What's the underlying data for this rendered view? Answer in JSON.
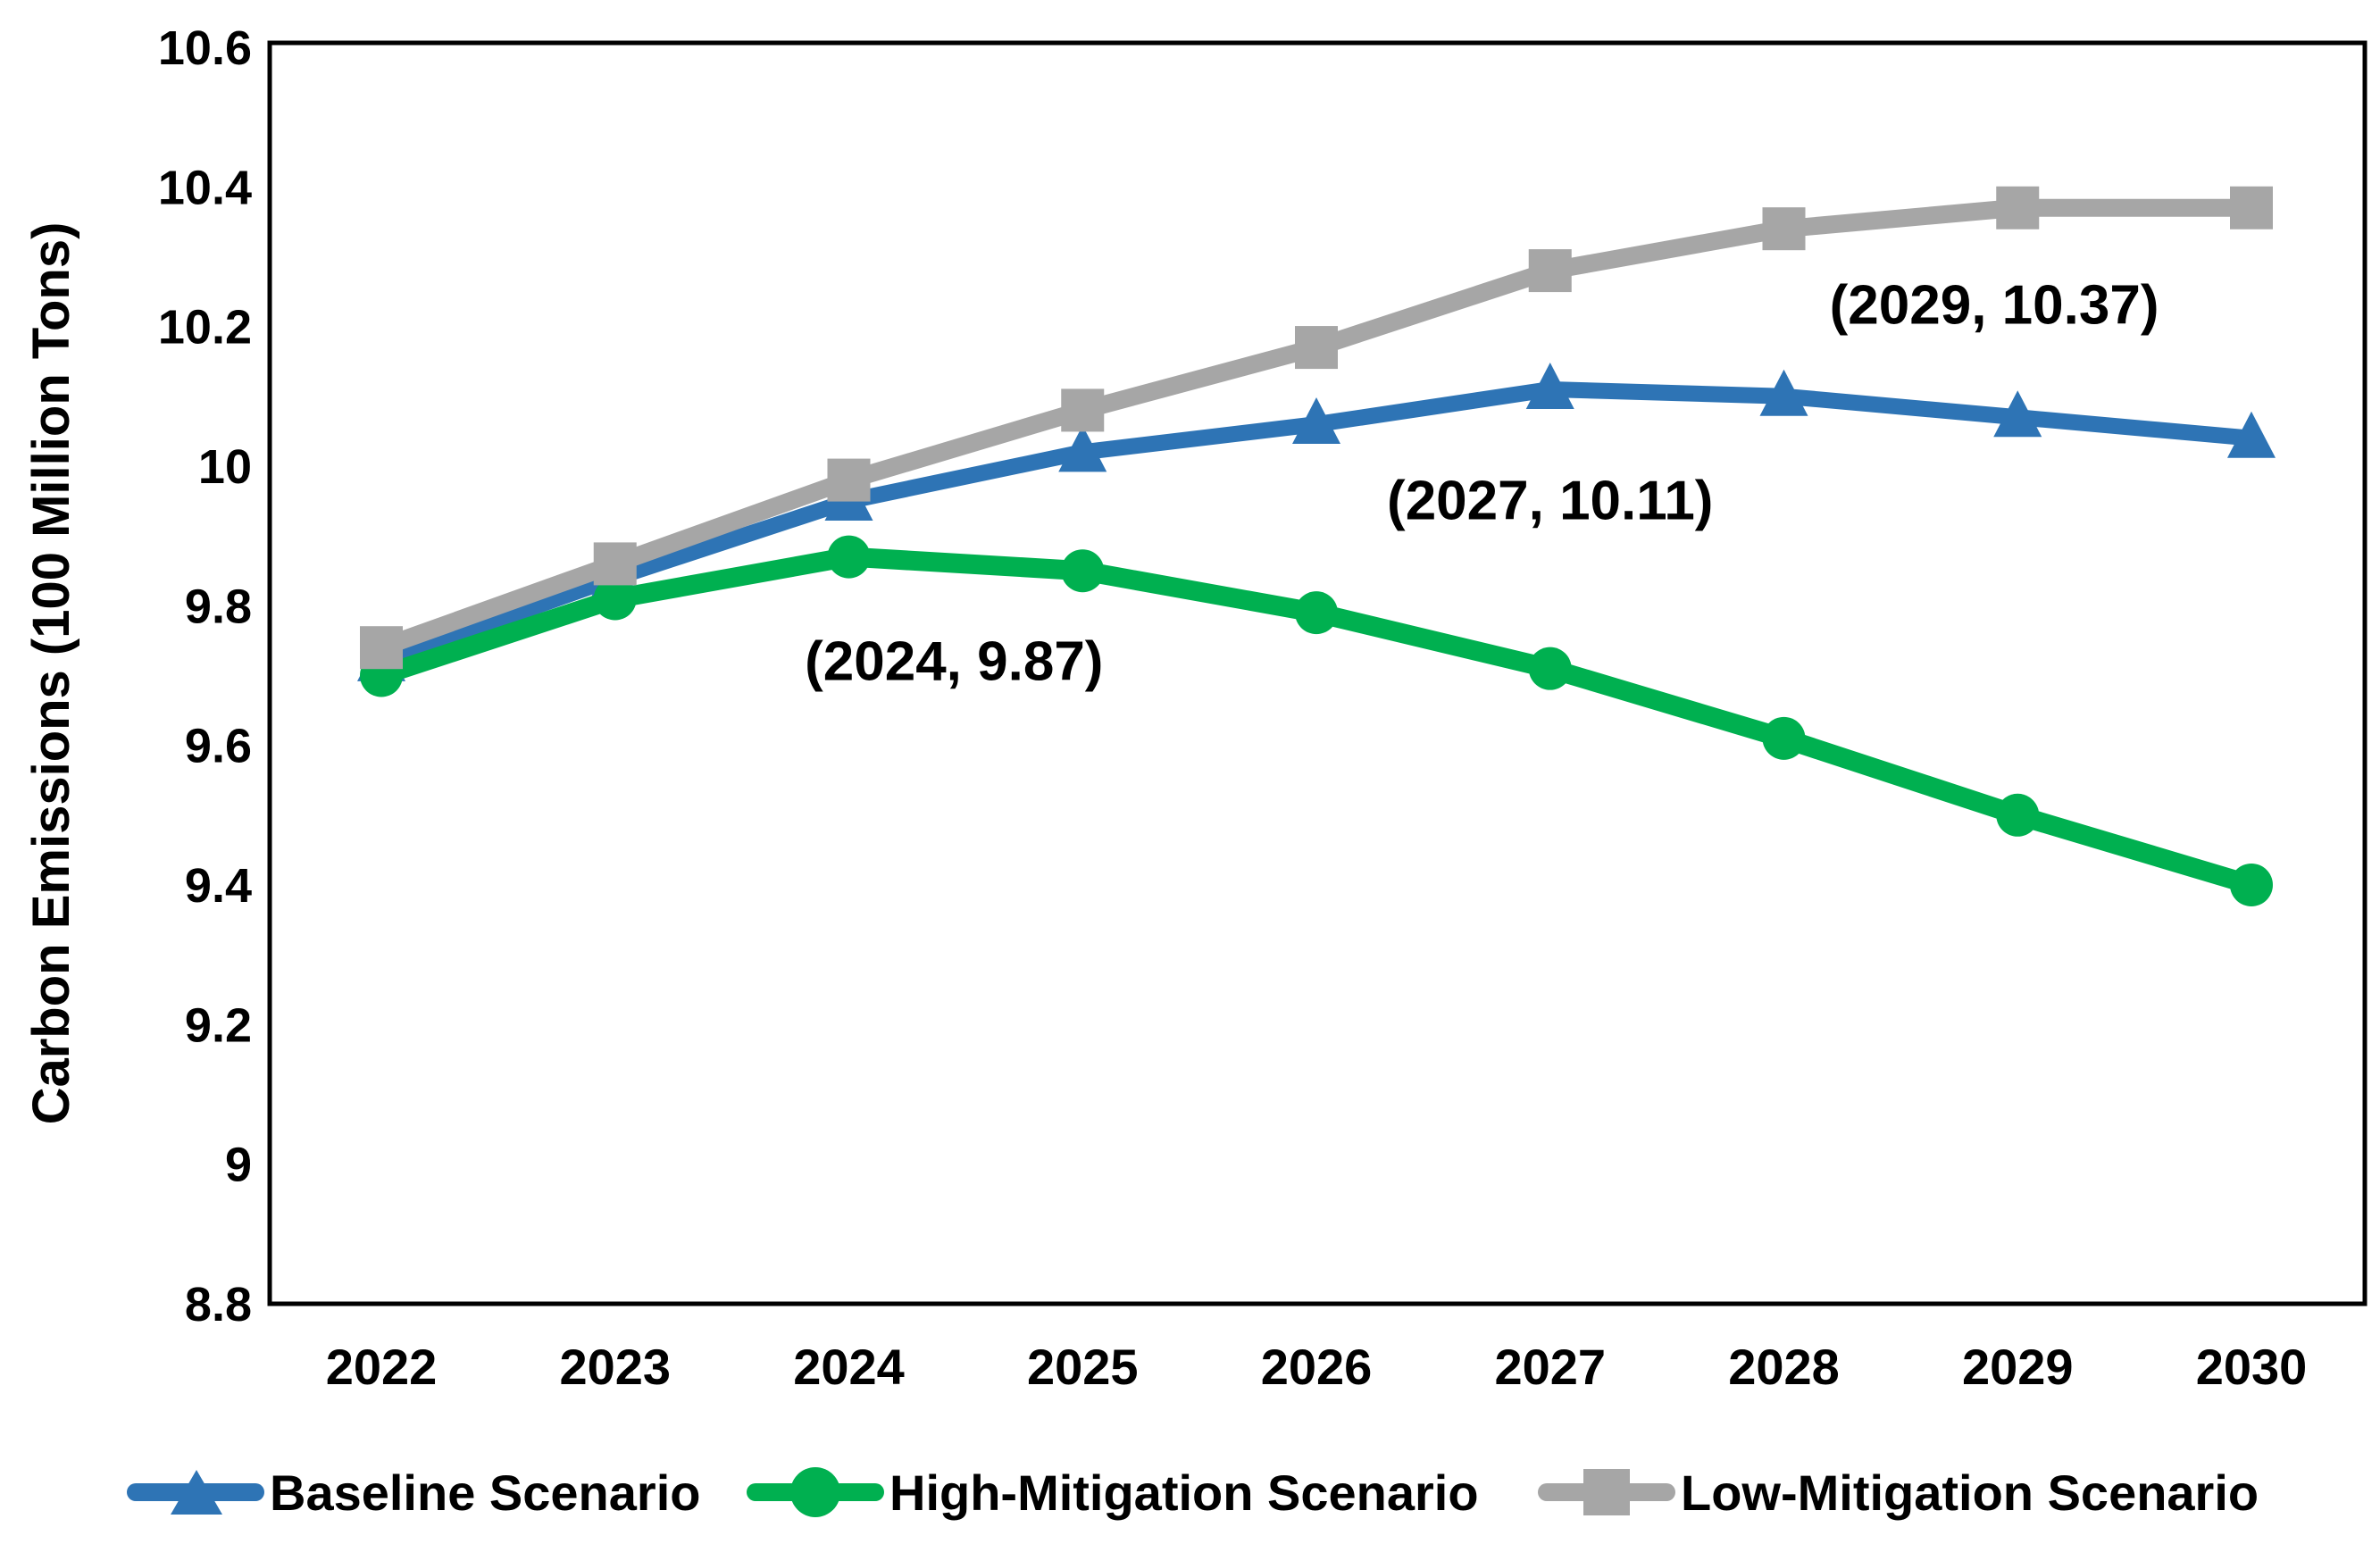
{
  "chart_data": {
    "type": "line",
    "title": "",
    "xlabel": "",
    "ylabel": "Carbon Emissions (100 Million Tons)",
    "categories": [
      "2022",
      "2023",
      "2024",
      "2025",
      "2026",
      "2027",
      "2028",
      "2029",
      "2030"
    ],
    "ylim": [
      8.8,
      10.6
    ],
    "ytick_step": 0.2,
    "ytick_labels": [
      "8.8",
      "9",
      "9.2",
      "9.4",
      "9.6",
      "9.8",
      "10",
      "10.2",
      "10.4",
      "10.6"
    ],
    "grid": false,
    "legend_position": "bottom",
    "series": [
      {
        "name": "Baseline Scenario",
        "marker": "triangle",
        "color": "#2E74B5",
        "values": [
          9.72,
          9.84,
          9.95,
          10.02,
          10.06,
          10.11,
          10.1,
          10.07,
          10.04
        ]
      },
      {
        "name": "High-Mitigation Scenario",
        "marker": "circle",
        "color": "#00B050",
        "values": [
          9.7,
          9.81,
          9.87,
          9.85,
          9.79,
          9.71,
          9.61,
          9.5,
          9.4
        ]
      },
      {
        "name": "Low-Mitigation Scenario",
        "marker": "square",
        "color": "#A6A6A6",
        "values": [
          9.74,
          9.86,
          9.98,
          10.08,
          10.17,
          10.28,
          10.34,
          10.37,
          10.37
        ]
      }
    ],
    "annotations": [
      {
        "text": "(2024, 9.87)",
        "anchor_year": 2024.45,
        "anchor_value": 9.72
      },
      {
        "text": "(2027, 10.11)",
        "anchor_year": 2027.0,
        "anchor_value": 9.95
      },
      {
        "text": "(2029, 10.37)",
        "anchor_year": 2028.9,
        "anchor_value": 10.23
      }
    ]
  }
}
